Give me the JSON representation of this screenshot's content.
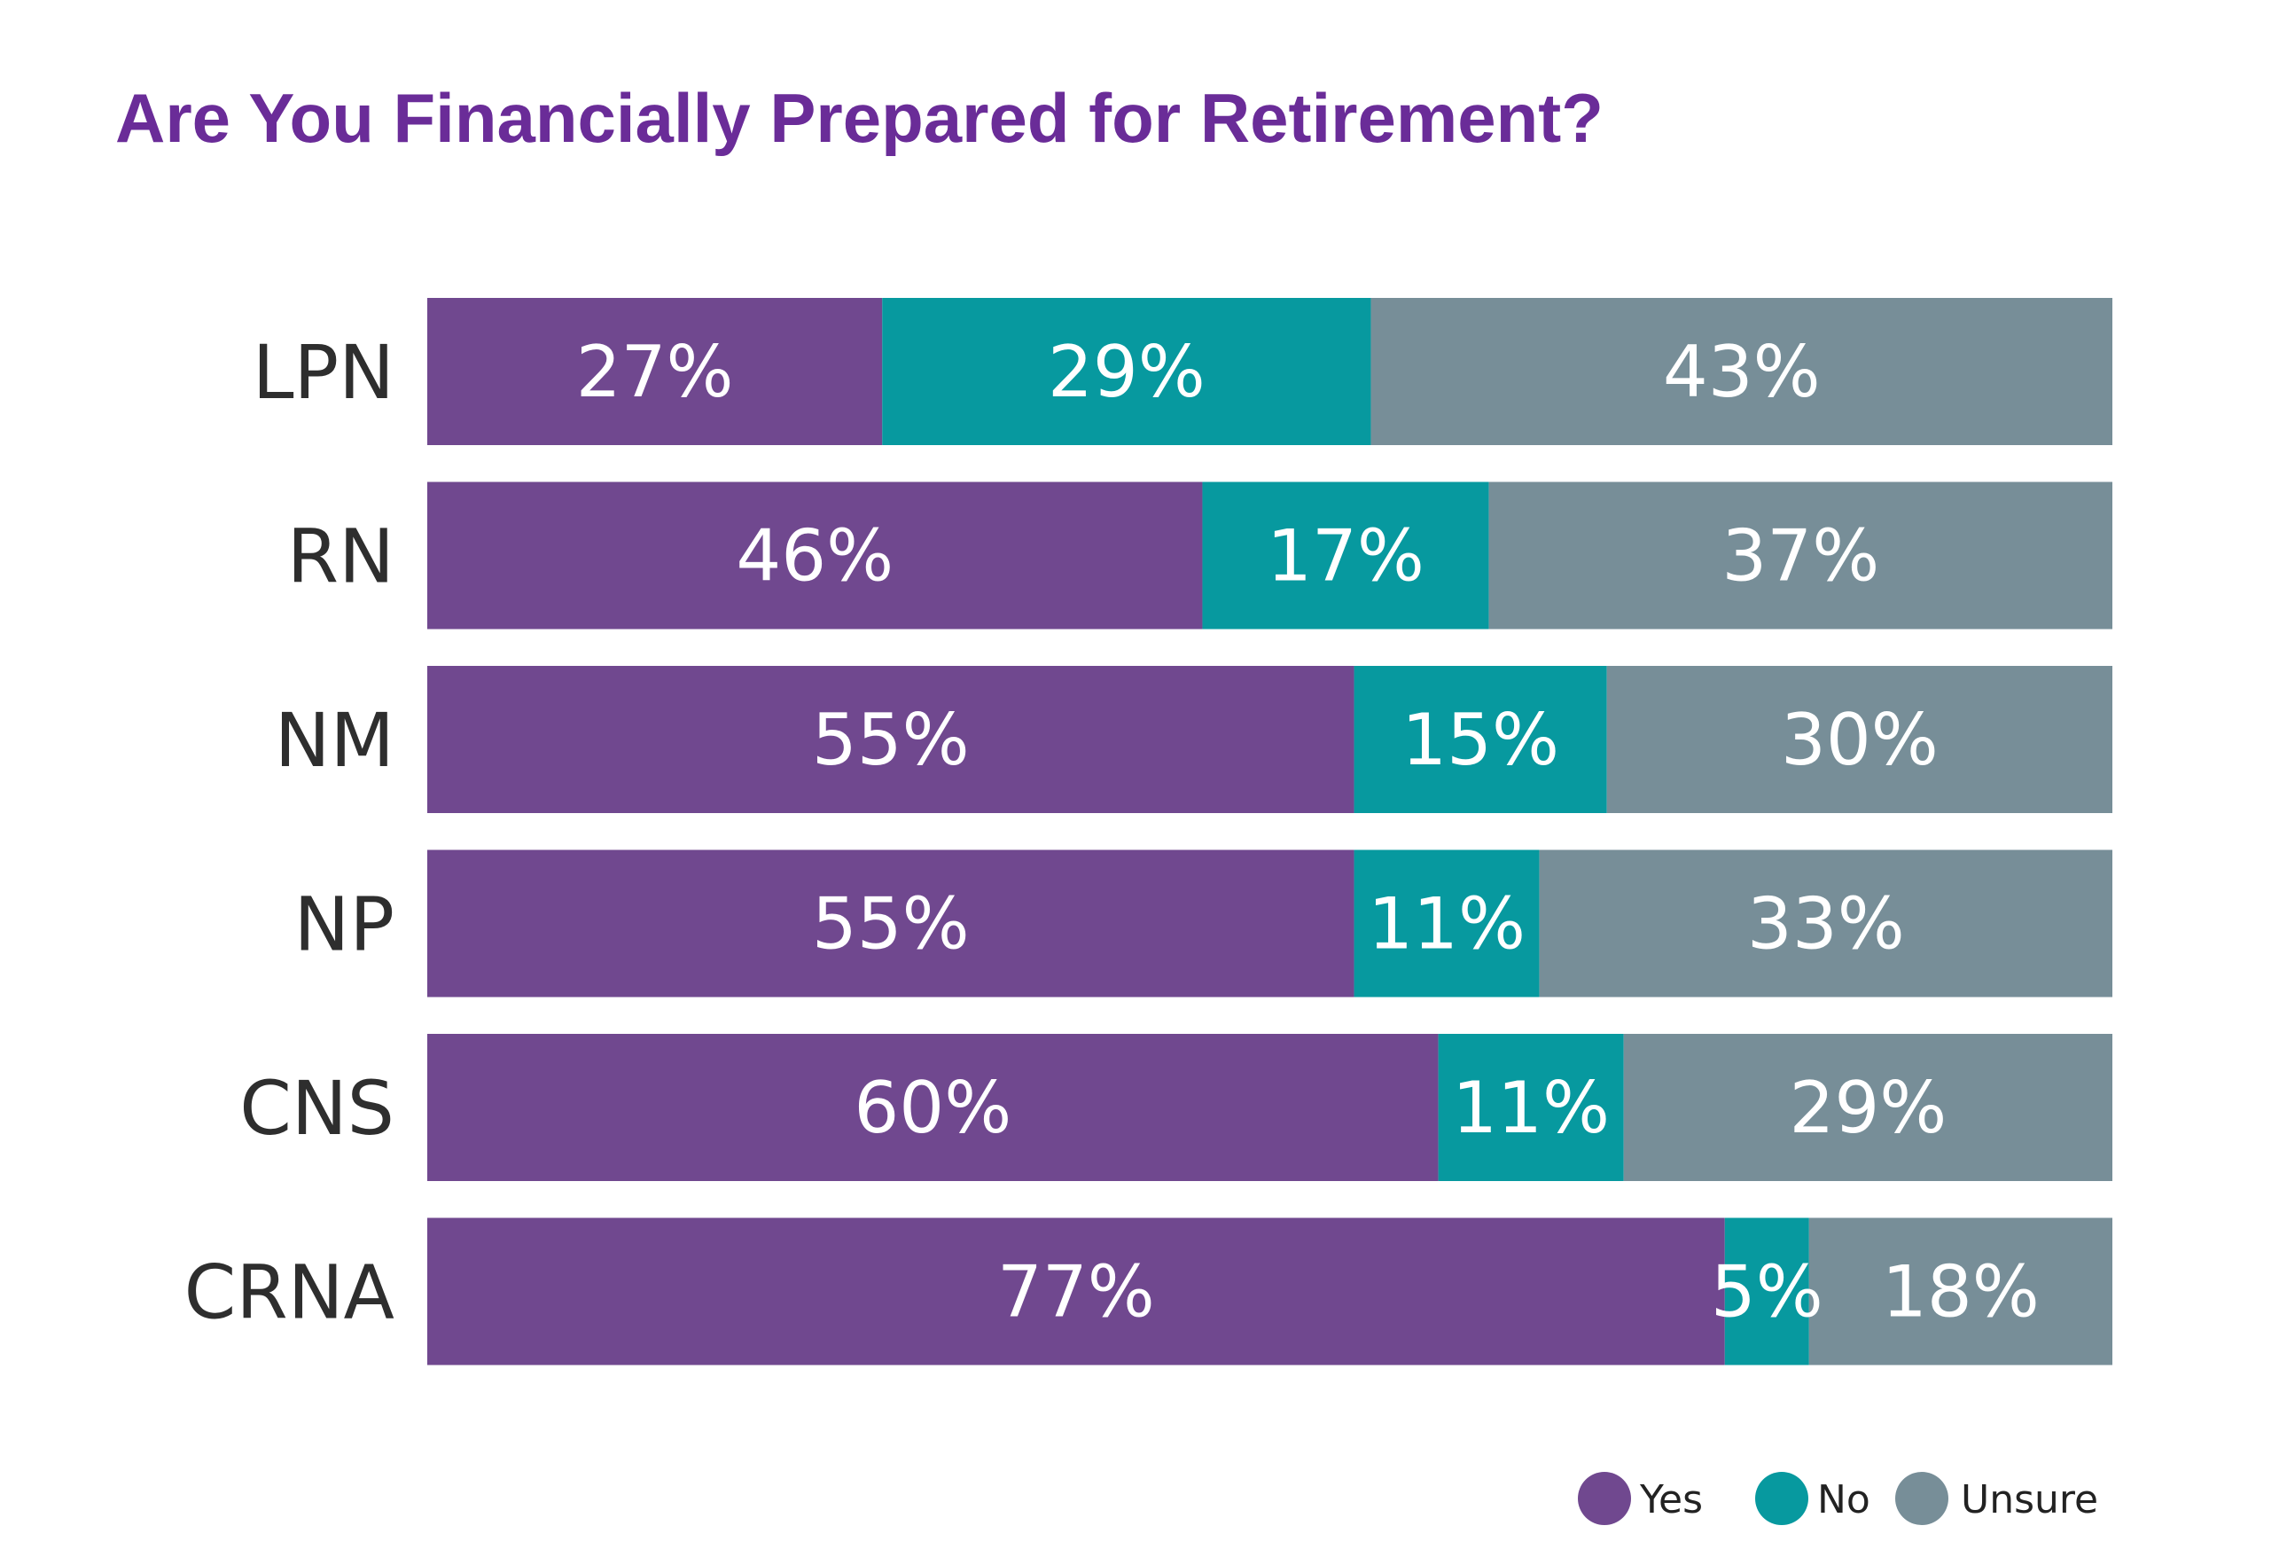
{
  "colors": {
    "title": "#6A2C98",
    "category_text": "#2E2E2E",
    "value_text": "#FFFFFF",
    "legend_text": "#222222",
    "background": "#FFFFFF"
  },
  "chart_data": {
    "type": "bar",
    "orientation": "horizontal",
    "stacked": true,
    "title": "Are You Financially Prepared for Retirement?",
    "xlabel": "",
    "ylabel": "",
    "xlim": [
      0,
      100
    ],
    "grid": false,
    "legend_position": "bottom-right",
    "categories": [
      "LPN",
      "RN",
      "NM",
      "NP",
      "CNS",
      "CRNA"
    ],
    "series": [
      {
        "name": "Yes",
        "color": "#70488F",
        "values": [
          27,
          46,
          55,
          55,
          60,
          77
        ],
        "labels": [
          "27%",
          "46%",
          "55%",
          "55%",
          "60%",
          "77%"
        ]
      },
      {
        "name": "No",
        "color": "#07999F",
        "values": [
          29,
          17,
          15,
          11,
          11,
          5
        ],
        "labels": [
          "29%",
          "17%",
          "15%",
          "11%",
          "11%",
          "5%"
        ]
      },
      {
        "name": "Unsure",
        "color": "#778E98",
        "values": [
          43,
          37,
          30,
          33,
          29,
          18
        ],
        "labels": [
          "43%",
          "37%",
          "30%",
          "33%",
          "29%",
          "18%"
        ]
      }
    ]
  }
}
